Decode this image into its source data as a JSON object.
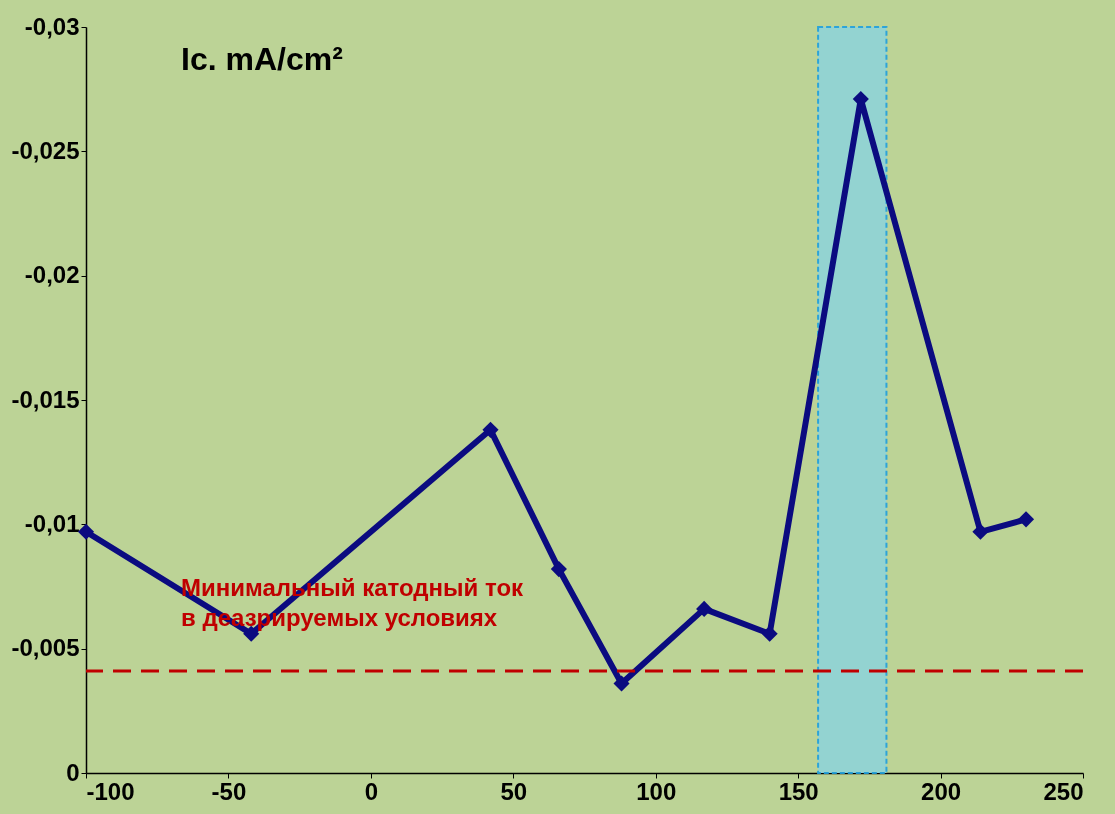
{
  "chart_data": {
    "type": "line",
    "ylabel": "Ic. mA/cm²",
    "x": [
      -100,
      -42,
      42,
      66,
      88,
      117,
      140,
      172,
      214,
      230
    ],
    "series": [
      {
        "color": "#0b0b80",
        "values": [
          -0.0097,
          -0.0056,
          -0.0138,
          -0.0082,
          -0.0036,
          -0.0066,
          -0.0056,
          -0.0271,
          -0.0097,
          -0.0102
        ]
      }
    ],
    "xlim": [
      -100,
      250
    ],
    "xticks": [
      -100,
      -50,
      0,
      50,
      100,
      150,
      200,
      250
    ],
    "ylim": [
      0,
      -0.03
    ],
    "yticks": [
      {
        "value": 0,
        "label": "0"
      },
      {
        "value": -0.005,
        "label": "-0,005"
      },
      {
        "value": -0.01,
        "label": "-0,01"
      },
      {
        "value": -0.015,
        "label": "-0,015"
      },
      {
        "value": -0.02,
        "label": "-0,02"
      },
      {
        "value": -0.025,
        "label": "-0,025"
      },
      {
        "value": -0.03,
        "label": "-0,03"
      }
    ],
    "ref_lines": [
      {
        "axis": "y",
        "value": -0.0041,
        "label": "Минимальный катодный ток\nв деазрируемых условиях",
        "color": "#c00000",
        "line_style": "dashed"
      }
    ],
    "bands": [
      {
        "axis": "x",
        "from": 157,
        "to": 181,
        "color": "#8fd3d8"
      }
    ],
    "marker": "diamond",
    "line_style": "solid",
    "grid": false
  }
}
